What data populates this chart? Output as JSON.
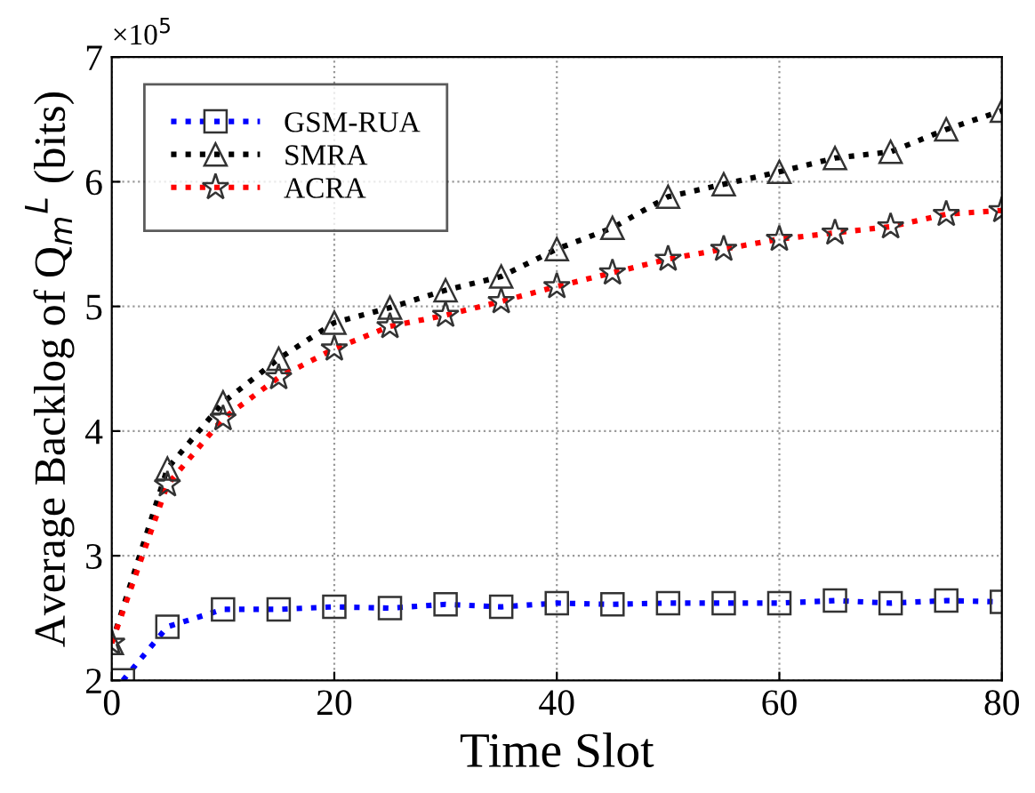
{
  "chart_data": {
    "type": "line",
    "xlabel": "Time Slot",
    "ylabel": "Average Backlog of Q$_{m}$$^{L}$ (bits)",
    "annotations": [
      "×10$^{5}$"
    ],
    "xlim": [
      0,
      80
    ],
    "xticks": [
      0,
      20,
      40,
      60,
      80
    ],
    "ylim": [
      2,
      7
    ],
    "yticks": [
      2,
      3,
      4,
      5,
      6,
      7
    ],
    "grid": true,
    "legend": "top left",
    "line_style": "dotted",
    "series": [
      {
        "name": "GSM-RUA",
        "color": "#0000ff",
        "marker": "square",
        "x": [
          1,
          5,
          10,
          15,
          20,
          25,
          30,
          35,
          40,
          45,
          50,
          55,
          60,
          65,
          70,
          75,
          80
        ],
        "values": [
          2.0,
          2.43,
          2.57,
          2.57,
          2.59,
          2.58,
          2.61,
          2.59,
          2.62,
          2.61,
          2.62,
          2.62,
          2.62,
          2.64,
          2.62,
          2.64,
          2.63
        ]
      },
      {
        "name": "SMRA",
        "color": "#000000",
        "marker": "triangle",
        "x": [
          0,
          5,
          10,
          15,
          20,
          25,
          30,
          35,
          40,
          45,
          50,
          55,
          60,
          65,
          70,
          75,
          80
        ],
        "values": [
          2.3,
          3.7,
          4.23,
          4.58,
          4.87,
          4.99,
          5.13,
          5.24,
          5.46,
          5.63,
          5.88,
          5.98,
          6.08,
          6.19,
          6.24,
          6.42,
          6.57
        ]
      },
      {
        "name": "ACRA",
        "color": "#ff0000",
        "marker": "star",
        "x": [
          0,
          5,
          10,
          15,
          20,
          25,
          30,
          35,
          40,
          45,
          50,
          55,
          60,
          65,
          70,
          75,
          80
        ],
        "values": [
          2.3,
          3.57,
          4.1,
          4.43,
          4.66,
          4.84,
          4.93,
          5.04,
          5.16,
          5.27,
          5.38,
          5.46,
          5.54,
          5.59,
          5.64,
          5.74,
          5.77
        ]
      }
    ]
  }
}
